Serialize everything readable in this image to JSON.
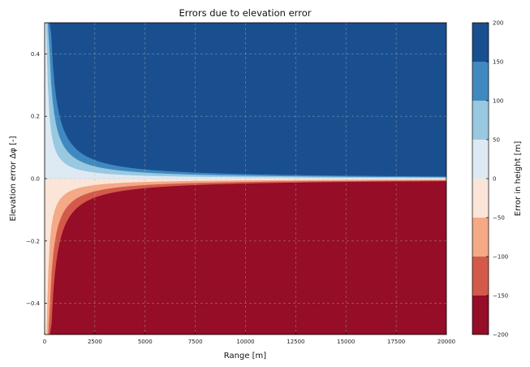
{
  "chart_data": {
    "type": "contourf",
    "title": "Errors due to elevation error",
    "xlabel": "Range [m]",
    "ylabel": "Elevation error Δφ [-]",
    "colorbar_label": "Error in height [m]",
    "function": "error_height = range * sin(elevation_error)",
    "xlim": [
      0,
      20000
    ],
    "ylim": [
      -0.5,
      0.5
    ],
    "xticks": [
      0,
      2500,
      5000,
      7500,
      10000,
      12500,
      15000,
      17500,
      20000
    ],
    "xtick_labels": [
      "0",
      "2500",
      "5000",
      "7500",
      "10000",
      "12500",
      "15000",
      "17500",
      "20000"
    ],
    "yticks": [
      -0.4,
      -0.2,
      0.0,
      0.2,
      0.4
    ],
    "ytick_labels": [
      "−0.4",
      "−0.2",
      "0.0",
      "0.2",
      "0.4"
    ],
    "levels": [
      -200,
      -150,
      -100,
      -50,
      0,
      50,
      100,
      150,
      200
    ],
    "level_labels": [
      "−200",
      "−150",
      "−100",
      "−50",
      "0",
      "50",
      "100",
      "150",
      "200"
    ],
    "level_colors": [
      "#950d27",
      "#d35a4a",
      "#f4a987",
      "#fae5d8",
      "#dde9f3",
      "#99c8e1",
      "#4089c0",
      "#1a4f8f"
    ],
    "grid": true
  }
}
